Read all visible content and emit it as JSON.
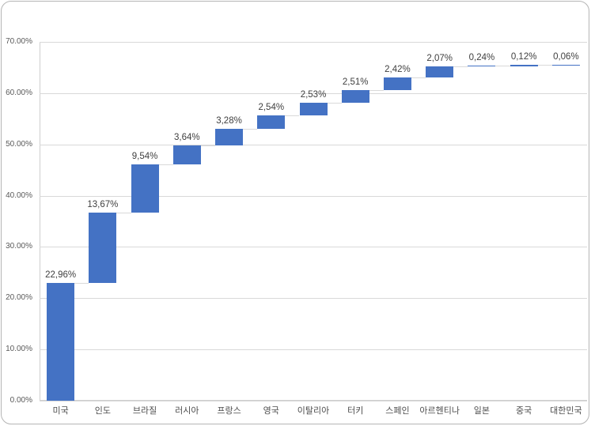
{
  "chart": {
    "bar_color": "#4472C4",
    "gridline_color": "#d9d9d9",
    "connector_color": "#d9d9d9",
    "axis_line_color": "#cfcfcf",
    "data_label_color": "#3f3f3f",
    "tick_label_color": "#595959",
    "frame_border_color": "#b5b5b5"
  },
  "chart_data": {
    "type": "bar",
    "subtype": "waterfall",
    "title": "",
    "xlabel": "",
    "ylabel": "",
    "grid": true,
    "legend": false,
    "categories": [
      "미국",
      "인도",
      "브라질",
      "러시아",
      "프랑스",
      "영국",
      "이탈리아",
      "터키",
      "스페인",
      "아르헨티나",
      "일본",
      "중국",
      "대한민국"
    ],
    "values": [
      22.96,
      13.67,
      9.54,
      3.64,
      3.28,
      2.54,
      2.53,
      2.51,
      2.42,
      2.07,
      0.24,
      0.12,
      0.06
    ],
    "cumulative": [
      22.96,
      36.63,
      46.17,
      49.81,
      53.09,
      55.63,
      58.16,
      60.67,
      63.09,
      65.16,
      65.4,
      65.52,
      65.58
    ],
    "data_labels": [
      "22,96%",
      "13,67%",
      "9,54%",
      "3,64%",
      "3,28%",
      "2,54%",
      "2,53%",
      "2,51%",
      "2,42%",
      "2,07%",
      "0,24%",
      "0,12%",
      "0,06%"
    ],
    "y_ticks": [
      0,
      10,
      20,
      30,
      40,
      50,
      60,
      70
    ],
    "y_tick_labels": [
      "0.00%",
      "10.00%",
      "20.00%",
      "30.00%",
      "40.00%",
      "50.00%",
      "60.00%",
      "70.00%"
    ],
    "ylim": [
      0,
      70
    ]
  }
}
